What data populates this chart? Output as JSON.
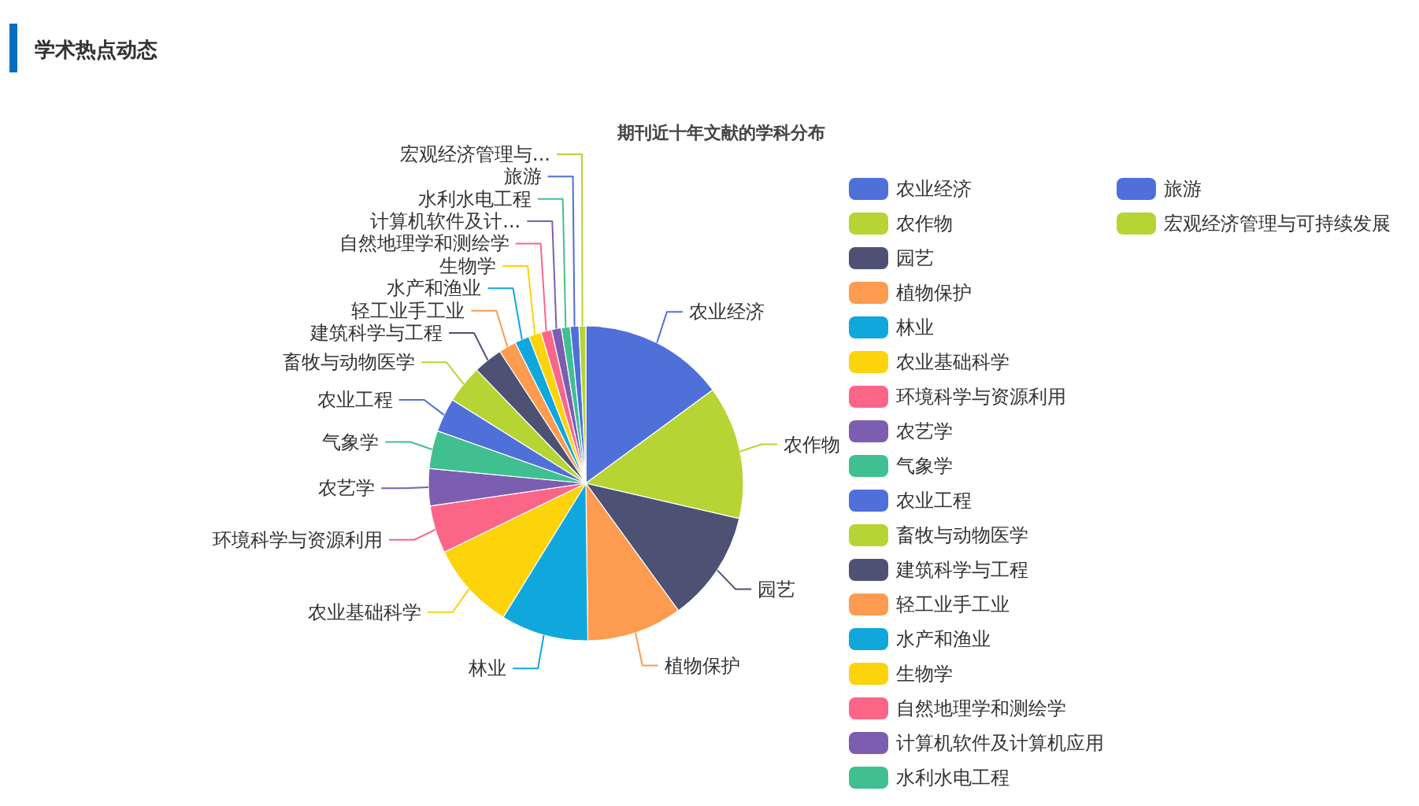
{
  "chart_data": {
    "type": "pie",
    "title": "期刊近十年文献的学科分布",
    "annotations": [
      "学术热点动态",
      {
        "text": "计算机软件及计...",
        "x": "计算机软件及计算机应用"
      },
      {
        "text": "宏观经济管理与...",
        "x": "宏观经济管理与可持续发展"
      }
    ],
    "categories": [
      "农业经济",
      "农作物",
      "园艺",
      "植物保护",
      "林业",
      "农业基础科学",
      "环境科学与资源利用",
      "农艺学",
      "气象学",
      "农业工程",
      "畜牧与动物医学",
      "建筑科学与工程",
      "轻工业手工业",
      "水产和渔业",
      "生物学",
      "自然地理学和测绘学",
      "计算机软件及计算机应用",
      "水利水电工程",
      "旅游",
      "宏观经济管理与可持续发展"
    ],
    "values": [
      14.9,
      13.7,
      11.4,
      9.8,
      9.0,
      9.0,
      4.9,
      3.8,
      3.9,
      3.5,
      3.9,
      3.0,
      1.8,
      1.5,
      1.3,
      1.1,
      1.0,
      0.9,
      0.9,
      0.7
    ],
    "colors": [
      "#4f6fd9",
      "#b6d434",
      "#4d5173",
      "#fd9b50",
      "#10a7dd",
      "#fdd30c",
      "#fb6688",
      "#7c5eb1",
      "#40bf91",
      "#4f6fd9",
      "#b6d434",
      "#4d5173",
      "#fd9b50",
      "#10a7dd",
      "#fdd30c",
      "#fb6688",
      "#7c5eb1",
      "#40bf91",
      "#4f6fd9",
      "#b6d434"
    ],
    "legend": "right"
  }
}
